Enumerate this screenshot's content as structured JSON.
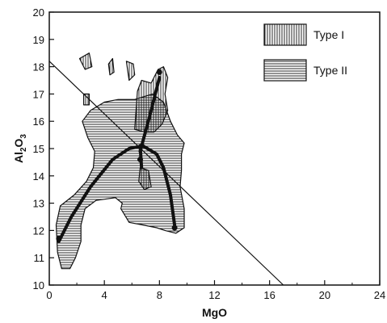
{
  "chart_data": {
    "type": "scatter",
    "title": "",
    "xlabel": "MgO",
    "ylabel_main": "Al",
    "ylabel_sub1": "2",
    "ylabel_mid": "O",
    "ylabel_sub2": "3",
    "xlim": [
      0,
      24
    ],
    "ylim": [
      10,
      20
    ],
    "xticks": [
      "0",
      "4",
      "8",
      "12",
      "16",
      "20",
      "24"
    ],
    "yticks": [
      "10",
      "11",
      "12",
      "13",
      "14",
      "15",
      "16",
      "17",
      "18",
      "19",
      "20"
    ],
    "grid": false,
    "legend_position": "top-right",
    "legend": [
      {
        "label": "Type  I",
        "pattern": "vertical-hatch"
      },
      {
        "label": "Type  II",
        "pattern": "horizontal-hatch"
      }
    ],
    "colors": {
      "ink": "#111111",
      "background": "#ffffff"
    },
    "regions": {
      "type2_main": [
        [
          0.6,
          11.2
        ],
        [
          0.5,
          12.2
        ],
        [
          0.8,
          12.9
        ],
        [
          1.8,
          13.3
        ],
        [
          2.7,
          13.8
        ],
        [
          3.2,
          14.3
        ],
        [
          3.3,
          14.9
        ],
        [
          2.8,
          15.4
        ],
        [
          2.4,
          16.0
        ],
        [
          3.0,
          16.4
        ],
        [
          4.0,
          16.7
        ],
        [
          5.0,
          16.8
        ],
        [
          6.2,
          16.8
        ],
        [
          7.5,
          17.0
        ],
        [
          8.3,
          16.7
        ],
        [
          8.8,
          16.0
        ],
        [
          9.3,
          15.5
        ],
        [
          9.8,
          15.2
        ],
        [
          9.6,
          14.8
        ],
        [
          9.6,
          14.2
        ],
        [
          9.5,
          13.6
        ],
        [
          9.8,
          12.8
        ],
        [
          9.8,
          12.1
        ],
        [
          9.2,
          11.9
        ],
        [
          8.4,
          12.0
        ],
        [
          7.8,
          12.1
        ],
        [
          6.8,
          12.2
        ],
        [
          5.8,
          12.3
        ],
        [
          5.2,
          12.8
        ],
        [
          5.3,
          13.0
        ],
        [
          4.8,
          13.2
        ],
        [
          3.4,
          13.1
        ],
        [
          2.6,
          12.8
        ],
        [
          2.3,
          12.2
        ],
        [
          2.3,
          11.6
        ],
        [
          1.9,
          11.0
        ],
        [
          1.5,
          10.6
        ],
        [
          0.9,
          10.6
        ]
      ],
      "type1_main": [
        [
          6.2,
          15.7
        ],
        [
          6.3,
          16.4
        ],
        [
          6.4,
          17.1
        ],
        [
          6.7,
          17.5
        ],
        [
          7.4,
          17.4
        ],
        [
          7.9,
          17.9
        ],
        [
          8.3,
          18.0
        ],
        [
          8.6,
          17.6
        ],
        [
          8.4,
          17.0
        ],
        [
          8.6,
          16.4
        ],
        [
          8.2,
          15.9
        ],
        [
          7.6,
          15.6
        ],
        [
          7.0,
          15.6
        ]
      ],
      "type1_blob_a": [
        [
          2.2,
          18.3
        ],
        [
          2.9,
          18.5
        ],
        [
          3.1,
          18.0
        ],
        [
          2.6,
          17.9
        ]
      ],
      "type1_blob_b": [
        [
          4.3,
          18.1
        ],
        [
          4.6,
          18.3
        ],
        [
          4.7,
          17.8
        ],
        [
          4.4,
          17.7
        ]
      ],
      "type1_blob_c": [
        [
          5.6,
          18.2
        ],
        [
          6.1,
          18.1
        ],
        [
          6.2,
          17.7
        ],
        [
          5.8,
          17.5
        ]
      ],
      "type1_blob_d": [
        [
          2.5,
          17.0
        ],
        [
          2.9,
          17.0
        ],
        [
          2.9,
          16.6
        ],
        [
          2.5,
          16.6
        ]
      ],
      "type1_blob_e": [
        [
          6.6,
          14.3
        ],
        [
          7.2,
          14.2
        ],
        [
          7.4,
          13.6
        ],
        [
          6.9,
          13.5
        ],
        [
          6.5,
          13.8
        ]
      ]
    },
    "lines": {
      "diagonal": [
        [
          0.0,
          18.2
        ],
        [
          17.0,
          10.0
        ]
      ],
      "trend_left": [
        [
          0.7,
          11.6
        ],
        [
          1.6,
          12.5
        ],
        [
          3.0,
          13.6
        ],
        [
          4.6,
          14.6
        ],
        [
          5.8,
          15.0
        ],
        [
          6.8,
          15.1
        ]
      ],
      "trend_right": [
        [
          6.8,
          15.1
        ],
        [
          7.8,
          14.8
        ],
        [
          8.3,
          14.3
        ],
        [
          8.8,
          13.3
        ],
        [
          9.1,
          12.2
        ]
      ],
      "trend_up": [
        [
          6.6,
          14.9
        ],
        [
          7.3,
          16.2
        ],
        [
          8.0,
          17.6
        ]
      ],
      "trend_down": [
        [
          6.6,
          15.1
        ],
        [
          6.7,
          14.3
        ]
      ],
      "dots": [
        [
          0.7,
          11.7
        ],
        [
          6.6,
          14.6
        ],
        [
          8.0,
          17.8
        ],
        [
          9.1,
          12.1
        ]
      ]
    }
  }
}
